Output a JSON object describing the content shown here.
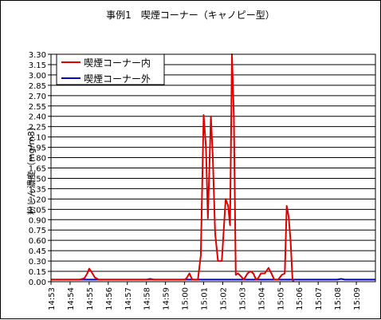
{
  "chart_data": {
    "type": "line",
    "title": "事例1　喫煙コーナー（キャノピー型）",
    "ylabel": "粉じん濃度（mg/m3）",
    "xlabel": "",
    "ylim": [
      0,
      3.3
    ],
    "ytick_step": 0.15,
    "y_tick_labels": [
      "0.00",
      "0.15",
      "0.30",
      "0.45",
      "0.60",
      "0.75",
      "0.90",
      "1.05",
      "1.20",
      "1.35",
      "1.50",
      "1.65",
      "1.80",
      "1.95",
      "2.10",
      "2.25",
      "2.40",
      "2.55",
      "2.70",
      "2.85",
      "3.00",
      "3.15",
      "3.30"
    ],
    "x_tick_labels": [
      "14:53",
      "14:54",
      "14:55",
      "14:56",
      "14:57",
      "14:58",
      "14:59",
      "15:00",
      "15:01",
      "15:02",
      "15:03",
      "15:04",
      "15:05",
      "15:06",
      "15:07",
      "15:08",
      "15:09"
    ],
    "x_range_minutes": [
      0,
      17
    ],
    "grid": true,
    "legend_position": "top-left",
    "series": [
      {
        "name": "喫煙コーナー内",
        "color": "#e00000",
        "points": [
          [
            0.0,
            0.03
          ],
          [
            1.5,
            0.03
          ],
          [
            1.75,
            0.05
          ],
          [
            1.9,
            0.12
          ],
          [
            2.0,
            0.19
          ],
          [
            2.1,
            0.15
          ],
          [
            2.3,
            0.06
          ],
          [
            2.5,
            0.03
          ],
          [
            3.0,
            0.03
          ],
          [
            4.0,
            0.03
          ],
          [
            5.0,
            0.03
          ],
          [
            6.0,
            0.03
          ],
          [
            6.5,
            0.03
          ],
          [
            6.8,
            0.03
          ],
          [
            7.0,
            0.03
          ],
          [
            7.1,
            0.05
          ],
          [
            7.25,
            0.12
          ],
          [
            7.4,
            0.03
          ],
          [
            7.55,
            0.03
          ],
          [
            7.7,
            0.03
          ],
          [
            7.85,
            0.38
          ],
          [
            8.0,
            2.42
          ],
          [
            8.12,
            1.95
          ],
          [
            8.22,
            0.92
          ],
          [
            8.38,
            2.4
          ],
          [
            8.48,
            1.8
          ],
          [
            8.6,
            0.7
          ],
          [
            8.75,
            0.3
          ],
          [
            8.95,
            0.3
          ],
          [
            9.15,
            1.2
          ],
          [
            9.28,
            1.1
          ],
          [
            9.38,
            0.82
          ],
          [
            9.48,
            3.3
          ],
          [
            9.58,
            2.4
          ],
          [
            9.68,
            0.1
          ],
          [
            9.8,
            0.12
          ],
          [
            9.95,
            0.08
          ],
          [
            10.1,
            0.03
          ],
          [
            10.3,
            0.12
          ],
          [
            10.45,
            0.15
          ],
          [
            10.6,
            0.12
          ],
          [
            10.75,
            0.03
          ],
          [
            10.85,
            0.05
          ],
          [
            11.0,
            0.12
          ],
          [
            11.2,
            0.12
          ],
          [
            11.4,
            0.2
          ],
          [
            11.55,
            0.12
          ],
          [
            11.7,
            0.03
          ],
          [
            11.9,
            0.03
          ],
          [
            12.1,
            0.1
          ],
          [
            12.25,
            0.12
          ],
          [
            12.35,
            1.1
          ],
          [
            12.45,
            0.95
          ],
          [
            12.55,
            0.6
          ],
          [
            12.65,
            0.05
          ],
          [
            12.7,
            0.0
          ]
        ]
      },
      {
        "name": "喫煙コーナー外",
        "color": "#0000cc",
        "points": [
          [
            0.0,
            0.03
          ],
          [
            3.0,
            0.03
          ],
          [
            5.0,
            0.03
          ],
          [
            5.2,
            0.04
          ],
          [
            5.4,
            0.03
          ],
          [
            7.0,
            0.03
          ],
          [
            9.0,
            0.03
          ],
          [
            11.0,
            0.03
          ],
          [
            13.0,
            0.03
          ],
          [
            15.0,
            0.03
          ],
          [
            15.2,
            0.04
          ],
          [
            15.4,
            0.03
          ],
          [
            17.0,
            0.03
          ]
        ]
      }
    ]
  }
}
